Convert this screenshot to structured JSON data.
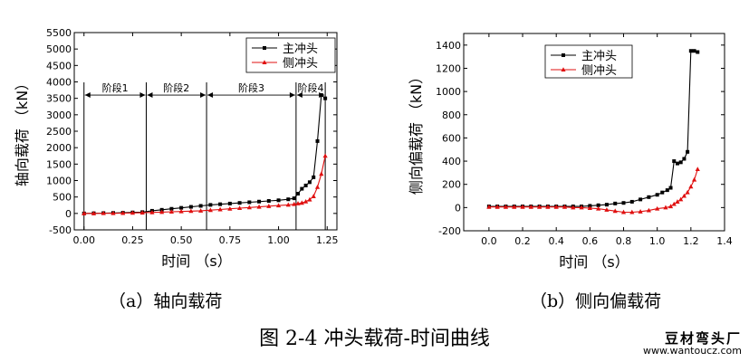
{
  "figure_caption": "图 2-4  冲头载荷-时间曲线",
  "watermark": {
    "name": "豆材弯头厂",
    "url": "www.wantoucz.com"
  },
  "colors": {
    "main": "#000000",
    "side": "#e01010",
    "axis": "#000000"
  },
  "chart_data": [
    {
      "type": "line",
      "caption": "（a）轴向载荷",
      "xlabel": "时间  （s）",
      "ylabel": "轴向载荷  （kN）",
      "xlim": [
        -0.05,
        1.3
      ],
      "ylim": [
        -500,
        5500
      ],
      "xticks": [
        "0.00",
        "0.25",
        "0.50",
        "0.75",
        "1.00",
        "1.25"
      ],
      "xtick_values": [
        0,
        0.25,
        0.5,
        0.75,
        1.0,
        1.25
      ],
      "yticks": [
        "-500",
        "0",
        "500",
        "1000",
        "1500",
        "2000",
        "2500",
        "3000",
        "3500",
        "4000",
        "4500",
        "5000",
        "5500"
      ],
      "ytick_values": [
        -500,
        0,
        500,
        1000,
        1500,
        2000,
        2500,
        3000,
        3500,
        4000,
        4500,
        5000,
        5500
      ],
      "legend": {
        "position": "top-right",
        "entries": [
          "主冲头",
          "侧冲头"
        ]
      },
      "stage_lines": [
        0,
        0.32,
        0.63,
        1.09,
        1.24
      ],
      "stages": [
        {
          "label": "阶段1",
          "from": 0,
          "to": 0.32
        },
        {
          "label": "阶段2",
          "from": 0.32,
          "to": 0.63
        },
        {
          "label": "阶段3",
          "from": 0.63,
          "to": 1.09
        },
        {
          "label": "阶段4",
          "from": 1.09,
          "to": 1.24
        }
      ],
      "stage_arrow_y": 3600,
      "series": [
        {
          "name": "主冲头",
          "marker": "square",
          "x": [
            0,
            0.05,
            0.1,
            0.15,
            0.2,
            0.25,
            0.3,
            0.35,
            0.4,
            0.45,
            0.5,
            0.55,
            0.6,
            0.65,
            0.7,
            0.75,
            0.8,
            0.85,
            0.9,
            0.95,
            1.0,
            1.05,
            1.08,
            1.1,
            1.12,
            1.14,
            1.16,
            1.18,
            1.2,
            1.22,
            1.24
          ],
          "y": [
            0,
            5,
            10,
            15,
            20,
            30,
            40,
            80,
            110,
            140,
            170,
            200,
            230,
            260,
            280,
            300,
            320,
            340,
            360,
            380,
            400,
            430,
            460,
            600,
            750,
            850,
            950,
            1100,
            2200,
            3600,
            3500
          ]
        },
        {
          "name": "侧冲头",
          "marker": "triangle",
          "x": [
            0,
            0.05,
            0.1,
            0.15,
            0.2,
            0.25,
            0.3,
            0.35,
            0.4,
            0.45,
            0.5,
            0.55,
            0.6,
            0.65,
            0.7,
            0.75,
            0.8,
            0.85,
            0.9,
            0.95,
            1.0,
            1.05,
            1.08,
            1.1,
            1.12,
            1.14,
            1.16,
            1.18,
            1.2,
            1.22,
            1.24
          ],
          "y": [
            0,
            0,
            5,
            5,
            10,
            15,
            20,
            30,
            40,
            50,
            60,
            70,
            80,
            100,
            120,
            140,
            160,
            180,
            200,
            220,
            240,
            260,
            280,
            300,
            320,
            360,
            420,
            520,
            800,
            1200,
            1750
          ]
        }
      ]
    },
    {
      "type": "line",
      "caption": "（b）侧向偏载荷",
      "xlabel": "时间  （s）",
      "ylabel": "侧向偏载荷  （kN）",
      "xlim": [
        -0.15,
        1.4
      ],
      "ylim": [
        -200,
        1500
      ],
      "xticks": [
        "0.0",
        "0.2",
        "0.4",
        "0.6",
        "0.8",
        "1.0",
        "1.2",
        "1.4"
      ],
      "xtick_values": [
        0,
        0.2,
        0.4,
        0.6,
        0.8,
        1.0,
        1.2,
        1.4
      ],
      "yticks": [
        "-200",
        "0",
        "200",
        "400",
        "600",
        "800",
        "1000",
        "1200",
        "1400"
      ],
      "ytick_values": [
        -200,
        0,
        200,
        400,
        600,
        800,
        1000,
        1200,
        1400
      ],
      "legend": {
        "position": "top-center",
        "entries": [
          "主冲头",
          "侧冲头"
        ]
      },
      "series": [
        {
          "name": "主冲头",
          "marker": "square",
          "x": [
            0,
            0.05,
            0.1,
            0.15,
            0.2,
            0.25,
            0.3,
            0.35,
            0.4,
            0.45,
            0.5,
            0.55,
            0.6,
            0.65,
            0.7,
            0.75,
            0.8,
            0.85,
            0.9,
            0.95,
            1.0,
            1.03,
            1.06,
            1.08,
            1.1,
            1.12,
            1.14,
            1.16,
            1.18,
            1.2,
            1.22,
            1.24
          ],
          "y": [
            10,
            10,
            10,
            10,
            10,
            10,
            10,
            10,
            10,
            10,
            10,
            10,
            15,
            20,
            25,
            35,
            40,
            50,
            70,
            90,
            110,
            130,
            150,
            170,
            400,
            380,
            390,
            420,
            480,
            1350,
            1350,
            1340
          ]
        },
        {
          "name": "侧冲头",
          "marker": "triangle",
          "x": [
            0,
            0.05,
            0.1,
            0.15,
            0.2,
            0.25,
            0.3,
            0.35,
            0.4,
            0.45,
            0.5,
            0.55,
            0.6,
            0.65,
            0.7,
            0.75,
            0.8,
            0.85,
            0.9,
            0.95,
            1.0,
            1.05,
            1.08,
            1.1,
            1.12,
            1.14,
            1.16,
            1.18,
            1.2,
            1.22,
            1.24
          ],
          "y": [
            5,
            5,
            5,
            5,
            5,
            5,
            5,
            5,
            5,
            5,
            0,
            0,
            -5,
            -10,
            -20,
            -30,
            -40,
            -40,
            -35,
            -25,
            -10,
            0,
            10,
            30,
            50,
            70,
            100,
            130,
            180,
            240,
            330
          ]
        }
      ]
    }
  ]
}
